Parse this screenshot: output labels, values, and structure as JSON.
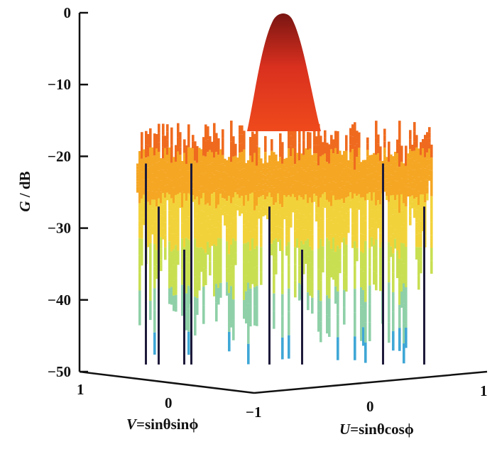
{
  "chart_data": {
    "type": "surface",
    "title": "",
    "zlabel_italic": "G",
    "zlabel_rest": " / dB",
    "zlim": [
      -50,
      0
    ],
    "z_ticks": [
      "0",
      "−10",
      "−20",
      "−30",
      "−40",
      "−50"
    ],
    "u_axis": {
      "label_italic": "U",
      "label_rest": "=sinθcosϕ",
      "range": [
        -1,
        1
      ],
      "ticks": [
        "−1",
        "0",
        "1"
      ]
    },
    "v_axis": {
      "label_italic": "V",
      "label_rest": "=sinθsinϕ",
      "range": [
        -1,
        1
      ],
      "ticks": [
        "1",
        "0"
      ]
    },
    "main_lobe_peak_db": 0,
    "sidelobe_level_db": -17,
    "floor_db": -50,
    "colormap": [
      "#3fa7d6",
      "#8fd0a8",
      "#c8df52",
      "#f2d23a",
      "#f5a623",
      "#ef6a1f",
      "#d9301f",
      "#8e1b16"
    ]
  }
}
